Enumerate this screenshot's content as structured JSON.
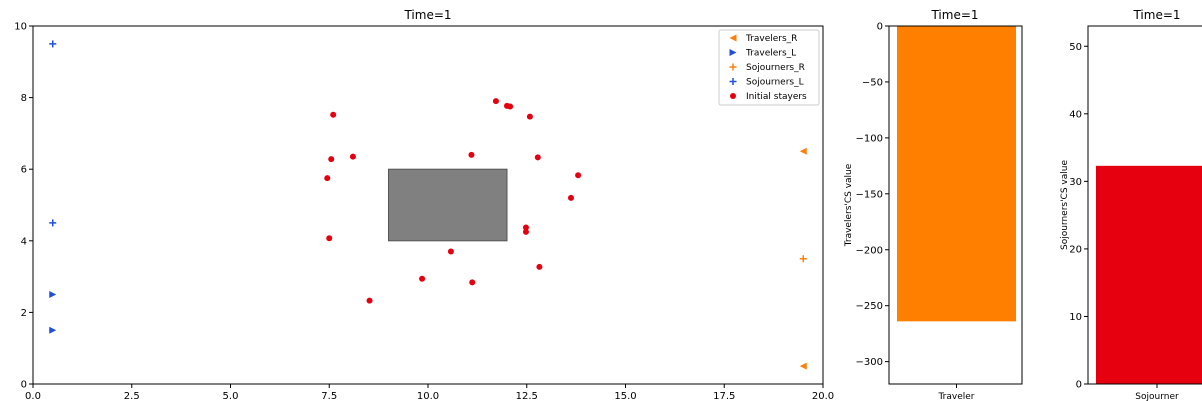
{
  "colors": {
    "orange": "#ff7f0e",
    "orange_bar": "#ff7f00",
    "blue": "#1f4fdc",
    "red": "#e6000f",
    "obstacle": "#808080"
  },
  "chart_data": [
    {
      "type": "scatter",
      "title": "Time=1",
      "xlim": [
        0,
        20
      ],
      "ylim": [
        0,
        10
      ],
      "x_ticks": [
        "0.0",
        "2.5",
        "5.0",
        "7.5",
        "10.0",
        "12.5",
        "15.0",
        "17.5",
        "20.0"
      ],
      "y_ticks": [
        "0",
        "2",
        "4",
        "6",
        "8",
        "10"
      ],
      "grid": false,
      "legend_position": "top-right",
      "obstacle": {
        "x0": 9,
        "x1": 12,
        "y0": 4,
        "y1": 6
      },
      "series": [
        {
          "name": "Travelers_R",
          "marker": "triangle-left",
          "color": "#ff7f0e",
          "points": [
            [
              19.5,
              6.5
            ],
            [
              19.5,
              0.5
            ]
          ]
        },
        {
          "name": "Travelers_L",
          "marker": "triangle-right",
          "color": "#1f4fdc",
          "points": [
            [
              0.5,
              2.5
            ],
            [
              0.5,
              1.5
            ]
          ]
        },
        {
          "name": "Sojourners_R",
          "marker": "plus",
          "color": "#ff7f0e",
          "points": [
            [
              19.5,
              3.5
            ]
          ]
        },
        {
          "name": "Sojourners_L",
          "marker": "plus",
          "color": "#1f4fdc",
          "points": [
            [
              0.5,
              9.5
            ],
            [
              0.5,
              4.5
            ]
          ]
        },
        {
          "name": "Initial stayers",
          "marker": "circle",
          "color": "#e6000f",
          "points": [
            [
              7.6,
              7.52
            ],
            [
              11.72,
              7.9
            ],
            [
              12.0,
              7.77
            ],
            [
              12.08,
              7.75
            ],
            [
              12.58,
              7.47
            ],
            [
              11.1,
              6.4
            ],
            [
              8.1,
              6.35
            ],
            [
              7.55,
              6.28
            ],
            [
              12.78,
              6.33
            ],
            [
              13.8,
              5.83
            ],
            [
              7.45,
              5.75
            ],
            [
              13.62,
              5.2
            ],
            [
              12.48,
              4.37
            ],
            [
              12.48,
              4.25
            ],
            [
              7.5,
              4.07
            ],
            [
              10.58,
              3.7
            ],
            [
              12.82,
              3.27
            ],
            [
              9.85,
              2.94
            ],
            [
              11.12,
              2.84
            ],
            [
              8.52,
              2.33
            ]
          ]
        }
      ]
    },
    {
      "type": "bar",
      "title": "Time=1",
      "categories": [
        "Traveler"
      ],
      "values": [
        -264
      ],
      "ylabel": "Travelers'CS value",
      "ylim": [
        -320,
        0
      ],
      "y_ticks": [
        0,
        -50,
        -100,
        -150,
        -200,
        -250,
        -300
      ],
      "color": "#ff7f00"
    },
    {
      "type": "bar",
      "title": "Time=1",
      "categories": [
        "Sojourner"
      ],
      "values": [
        32.3
      ],
      "ylabel": "Sojourners'CS value",
      "ylim": [
        0,
        53
      ],
      "y_ticks": [
        0,
        10,
        20,
        30,
        40,
        50
      ],
      "color": "#e6000f"
    }
  ]
}
